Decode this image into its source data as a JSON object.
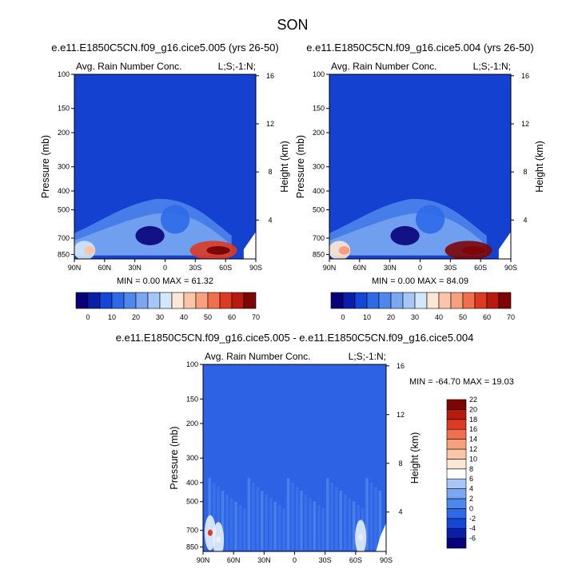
{
  "figure": {
    "title": "SON",
    "panels": [
      {
        "title": "e.e11.E1850C5CN.f09_g16.cice5.005 (yrs 26-50)",
        "left_label": "Avg. Rain Number Conc.",
        "right_label": "L;S;-1:N;",
        "stats": "MIN =   0.00   MAX =  61.32"
      },
      {
        "title": "e.e11.E1850C5CN.f09_g16.cice5.004 (yrs 26-50)",
        "left_label": "Avg. Rain Number Conc.",
        "right_label": "L;S;-1:N;",
        "stats": "MIN =   0.00   MAX =  84.09"
      },
      {
        "title": "e.e11.E1850C5CN.f09_g16.cice5.005 - e.e11.E1850C5CN.f09_g16.cice5.004",
        "left_label": "Avg. Rain Number Conc.",
        "right_label": "L;S;-1:N;",
        "stats": "MIN = -64.70   MAX =  19.03"
      }
    ]
  },
  "chart_data": [
    {
      "type": "heatmap",
      "title": "e.e11.E1850C5CN.f09_g16.cice5.005 (yrs 26-50)",
      "xlabel": "",
      "ylabel": "Pressure (mb)",
      "y2label": "Height (km)",
      "x_ticks": [
        "90N",
        "60N",
        "30N",
        "0",
        "30S",
        "60S",
        "90S"
      ],
      "x_values": [
        90,
        60,
        30,
        0,
        -30,
        -60,
        -90
      ],
      "y_ticks": [
        100,
        150,
        200,
        300,
        400,
        500,
        700,
        850
      ],
      "y2_ticks": [
        4,
        8,
        12,
        16
      ],
      "min": 0.0,
      "max": 61.32,
      "colorbar_levels": [
        0,
        5,
        10,
        15,
        20,
        25,
        30,
        35,
        40,
        45,
        50,
        55,
        60,
        65,
        70
      ],
      "colorbar_labels": [
        "0",
        "10",
        "20",
        "30",
        "40",
        "50",
        "60",
        "70"
      ],
      "features": [
        {
          "lat": -48,
          "p": 810,
          "value": 60
        },
        {
          "lat": 80,
          "p": 810,
          "value": 35
        },
        {
          "lat": 15,
          "p": 680,
          "value": 3
        },
        {
          "lat": -10,
          "p": 560,
          "value": 15
        }
      ]
    },
    {
      "type": "heatmap",
      "title": "e.e11.E1850C5CN.f09_g16.cice5.004 (yrs 26-50)",
      "xlabel": "",
      "ylabel": "Pressure (mb)",
      "y2label": "Height (km)",
      "x_ticks": [
        "90N",
        "60N",
        "30N",
        "0",
        "30S",
        "60S",
        "90S"
      ],
      "x_values": [
        90,
        60,
        30,
        0,
        -30,
        -60,
        -90
      ],
      "y_ticks": [
        100,
        150,
        200,
        300,
        400,
        500,
        700,
        850
      ],
      "y2_ticks": [
        4,
        8,
        12,
        16
      ],
      "min": 0.0,
      "max": 84.09,
      "colorbar_levels": [
        0,
        5,
        10,
        15,
        20,
        25,
        30,
        35,
        40,
        45,
        50,
        55,
        60,
        65,
        70
      ],
      "colorbar_labels": [
        "0",
        "10",
        "20",
        "30",
        "40",
        "50",
        "60",
        "70"
      ],
      "features": [
        {
          "lat": -48,
          "p": 810,
          "value": 70
        },
        {
          "lat": 80,
          "p": 810,
          "value": 40
        },
        {
          "lat": 15,
          "p": 680,
          "value": 3
        },
        {
          "lat": -10,
          "p": 560,
          "value": 15
        }
      ]
    },
    {
      "type": "heatmap",
      "title": "e.e11.E1850C5CN.f09_g16.cice5.005 - e.e11.E1850C5CN.f09_g16.cice5.004",
      "xlabel": "",
      "ylabel": "Pressure (mb)",
      "y2label": "Height (km)",
      "x_ticks": [
        "90N",
        "60N",
        "30N",
        "0",
        "30S",
        "60S",
        "90S"
      ],
      "x_values": [
        90,
        60,
        30,
        0,
        -30,
        -60,
        -90
      ],
      "y_ticks": [
        100,
        150,
        200,
        300,
        400,
        500,
        700,
        850
      ],
      "y2_ticks": [
        4,
        8,
        12,
        16
      ],
      "min": -64.7,
      "max": 19.03,
      "colorbar_levels": [
        -7,
        -6,
        -5,
        -4,
        -3,
        -2,
        -1,
        0,
        1,
        2,
        3,
        4,
        5,
        6,
        7,
        8,
        9,
        10,
        11,
        12,
        13,
        14,
        15,
        16,
        17,
        18,
        19,
        20,
        21,
        22,
        23
      ],
      "colorbar_labels": [
        "-6",
        "-4",
        "-2",
        "0",
        "2",
        "4",
        "6",
        "8",
        "10",
        "12",
        "14",
        "16",
        "18",
        "20",
        "22"
      ],
      "features": [
        {
          "lat": 83,
          "p": 720,
          "value": 18
        },
        {
          "lat": 75,
          "p": 780,
          "value": 8
        },
        {
          "lat": -65,
          "p": 760,
          "value": 6
        }
      ]
    }
  ],
  "colors": {
    "seq_palette": [
      "#08027a",
      "#0a1fa8",
      "#1446d8",
      "#2e6ae8",
      "#4f88ec",
      "#7aa7f0",
      "#a6c6f5",
      "#d4e6fa",
      "#fde6d4",
      "#fbc6a8",
      "#f7a07d",
      "#ef6f4e",
      "#dd3a22",
      "#b91a10",
      "#7c0505"
    ],
    "base_blue": "#1441d0",
    "diff_base": "#2e62e4"
  }
}
